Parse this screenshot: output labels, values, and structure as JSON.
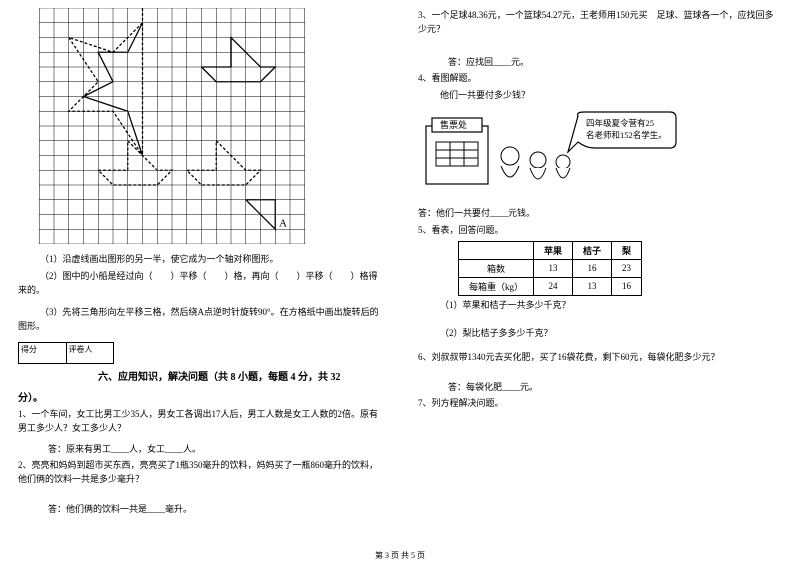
{
  "left": {
    "grid": {
      "cols": 18,
      "rows": 15,
      "cell": 15,
      "stroke": "#000000",
      "shapes_stroke": "#000000",
      "dash": "3,2",
      "label_A": "A"
    },
    "q1": "（1）沿虚线画出图形的另一半，使它成为一个轴对称图形。",
    "q2": "（2）图中的小船是经过向（　　）平移（　　）格，再向（　　）平移（　　）格得来的。",
    "q3": "（3）先将三角形向左平移三格，然后绕A点逆时针旋转90°。在方格纸中画出旋转后的图形。",
    "score_labels": {
      "a": "得分",
      "b": "评卷人"
    },
    "section6": "六、应用知识，解决问题（共 8 小题，每题 4 分，共 32",
    "section6_tail": "分）。",
    "p1": "1、一个车间，女工比男工少35人，男女工各调出17人后，男工人数是女工人数的2倍。原有男工多少人？女工多少人？",
    "a1": "答：原来有男工____人，女工____人。",
    "p2": "2、亮亮和妈妈到超市买东西，亮亮买了1瓶350毫升的饮料，妈妈买了一瓶860毫升的饮料，他们俩的饮料一共是多少毫升？",
    "a2": "答：他们俩的饮料一共是____毫升。"
  },
  "right": {
    "p3": "3、一个足球48.36元，一个篮球54.27元，王老师用150元买　足球、篮球各一个，应找回多少元？",
    "a3": "答：应找回____元。",
    "p4": "4、看图解题。",
    "p4b": "他们一共要付多少钱？",
    "illus": {
      "sign": "售票处",
      "bubble_l1": "四年级夏令营有25",
      "bubble_l2": "名老师和152名学生。"
    },
    "a4": "答：他们一共要付____元钱。",
    "p5": "5、看表，回答问题。",
    "table": {
      "headers": [
        "",
        "苹果",
        "桔子",
        "梨"
      ],
      "rows": [
        [
          "箱数",
          "13",
          "16",
          "23"
        ],
        [
          "每箱重（kg）",
          "24",
          "13",
          "16"
        ]
      ]
    },
    "p5q1": "（1）苹果和桔子一共多少千克？",
    "p5q2": "（2）梨比桔子多多少千克？",
    "p6": "6、刘叔叔带1340元去买化肥，买了16袋花费，剩下60元，每袋化肥多少元？",
    "a6": "答：每袋化肥____元。",
    "p7": "7、列方程解决问题。"
  },
  "footer": "第 3 页  共 5 页"
}
